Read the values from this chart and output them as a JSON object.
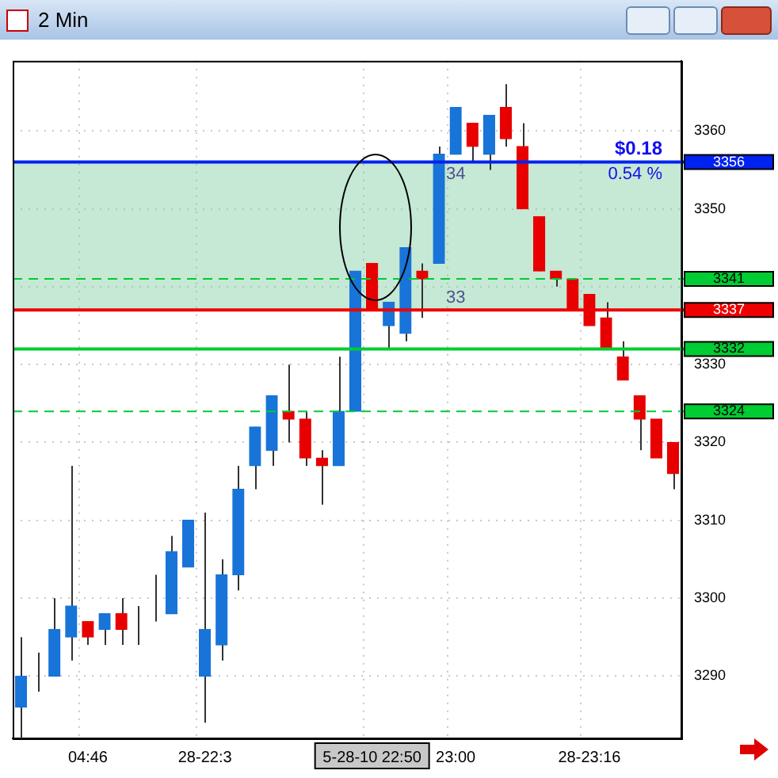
{
  "chart_data": {
    "type": "candlestick",
    "title": "2 Min",
    "categories": [
      null,
      null,
      null,
      null,
      "04:46",
      null,
      null,
      null,
      null,
      null,
      null,
      "28-22:3",
      null,
      null,
      null,
      null,
      null,
      null,
      null,
      null,
      null,
      "5-28-10 22:50",
      null,
      null,
      null,
      null,
      "23:00",
      null,
      null,
      null,
      null,
      null,
      null,
      null,
      "28-23:16",
      null,
      null,
      null,
      null,
      null
    ],
    "ohlc": [
      [
        3286,
        3295,
        3282,
        3290
      ],
      [
        3290,
        3293,
        3288,
        3290
      ],
      [
        3290,
        3300,
        3290,
        3296
      ],
      [
        3295,
        3317,
        3292,
        3299
      ],
      [
        3297,
        3297,
        3294,
        3295
      ],
      [
        3296,
        3298,
        3294,
        3298
      ],
      [
        3298,
        3300,
        3294,
        3296
      ],
      [
        3296,
        3299,
        3294,
        3296
      ],
      [
        3300,
        3303,
        3297,
        3300
      ],
      [
        3298,
        3308,
        3298,
        3306
      ],
      [
        3304,
        3310,
        3304,
        3310
      ],
      [
        3290,
        3311,
        3284,
        3296
      ],
      [
        3294,
        3305,
        3292,
        3303
      ],
      [
        3303,
        3317,
        3301,
        3314
      ],
      [
        3317,
        3322,
        3314,
        3322
      ],
      [
        3319,
        3326,
        3317,
        3326
      ],
      [
        3324,
        3330,
        3320,
        3323
      ],
      [
        3323,
        3324,
        3317,
        3318
      ],
      [
        3318,
        3319,
        3312,
        3317
      ],
      [
        3317,
        3331,
        3317,
        3324
      ],
      [
        3324,
        3342,
        3324,
        3342
      ],
      [
        3343,
        3343,
        3337,
        3337
      ],
      [
        3335,
        3338,
        3332,
        3338
      ],
      [
        3334,
        3345,
        3333,
        3345
      ],
      [
        3342,
        3343,
        3336,
        3341
      ],
      [
        3343,
        3358,
        3343,
        3357
      ],
      [
        3357,
        3363,
        3357,
        3363
      ],
      [
        3361,
        3361,
        3356,
        3358
      ],
      [
        3357,
        3362,
        3355,
        3362
      ],
      [
        3363,
        3366,
        3358,
        3359
      ],
      [
        3358,
        3361,
        3350,
        3350
      ],
      [
        3349,
        3349,
        3342,
        3342
      ],
      [
        3342,
        3342,
        3340,
        3341
      ],
      [
        3341,
        3341,
        3337,
        3337
      ],
      [
        3339,
        3339,
        3335,
        3335
      ],
      [
        3336,
        3338,
        3332,
        3332
      ],
      [
        3331,
        3333,
        3328,
        3328
      ],
      [
        3326,
        3326,
        3319,
        3323
      ],
      [
        3323,
        3323,
        3318,
        3318
      ],
      [
        3320,
        3320,
        3314,
        3316
      ]
    ],
    "colors": [
      "#1874d8",
      "#333333",
      "#1874d8",
      "#1874d8",
      "#e80000",
      "#1874d8",
      "#e80000",
      "#333333",
      "#333333",
      "#1874d8",
      "#1874d8",
      "#1874d8",
      "#1874d8",
      "#1874d8",
      "#1874d8",
      "#1874d8",
      "#e80000",
      "#e80000",
      "#e80000",
      "#1874d8",
      "#1874d8",
      "#e80000",
      "#1874d8",
      "#1874d8",
      "#e80000",
      "#1874d8",
      "#1874d8",
      "#e80000",
      "#1874d8",
      "#e80000",
      "#e80000",
      "#e80000",
      "#e80000",
      "#e80000",
      "#e80000",
      "#e80000",
      "#e80000",
      "#e80000",
      "#e80000",
      "#e80000"
    ],
    "ylim": [
      3282,
      3369
    ],
    "yticks": [
      3290,
      3300,
      3310,
      3320,
      3330,
      {
        "value": 3340,
        "label": null
      },
      3350,
      3360
    ],
    "grid": true,
    "legend": false,
    "ref_lines": [
      {
        "axis": "y",
        "value": 3356,
        "label": "3356",
        "color": "#0022ee"
      },
      {
        "axis": "y",
        "value": 3341,
        "label": "3341",
        "color": "#00cc33",
        "line_style": "dashed"
      },
      {
        "axis": "y",
        "value": 3337,
        "label": "3337",
        "color": "#ee0000"
      },
      {
        "axis": "y",
        "value": 3332,
        "label": "3332",
        "color": "#00cc33"
      },
      {
        "axis": "y",
        "value": 3324,
        "label": "3324",
        "color": "#00cc33",
        "line_style": "dashed"
      }
    ],
    "bands": [
      {
        "axis": "y",
        "from": 3337,
        "to": 3356,
        "color": "#7fcf9f"
      }
    ],
    "annotations": [
      {
        "text": "$0.18",
        "y": 3356
      },
      {
        "text": "0.54 %",
        "y": 3356
      },
      {
        "text": "33",
        "x": "23:00",
        "y": 3337
      },
      {
        "text": "34",
        "x": "23:00",
        "y": 3356
      }
    ]
  }
}
